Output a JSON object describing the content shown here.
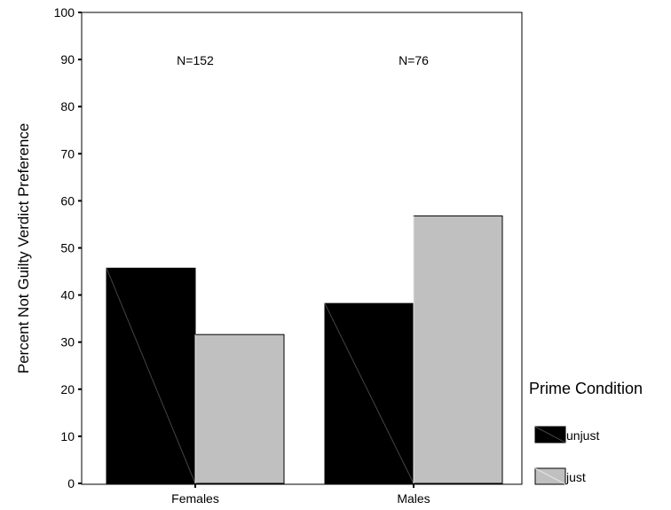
{
  "chart_data": {
    "type": "bar",
    "title": "",
    "xlabel": "",
    "ylabel": "Percent Not Guilty Verdict Preference",
    "ylim": [
      0,
      100
    ],
    "yticks": [
      0,
      10,
      20,
      30,
      40,
      50,
      60,
      70,
      80,
      90,
      100
    ],
    "categories": [
      "Females",
      "Males"
    ],
    "series": [
      {
        "name": "unjust",
        "values": [
          45.7,
          38.2
        ],
        "color": "#000000"
      },
      {
        "name": "just",
        "values": [
          31.6,
          56.8
        ],
        "color": "#c0c0c0"
      }
    ],
    "annotations": [
      "N=152",
      "N=76"
    ],
    "legend": {
      "title": "Prime Condition",
      "placement": "right"
    },
    "grid": false
  }
}
